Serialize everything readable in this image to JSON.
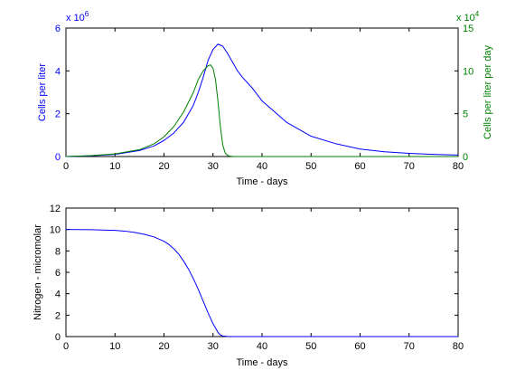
{
  "chart_data": [
    {
      "type": "line",
      "xlabel": "Time - days",
      "ylabel": "Cells per liter",
      "ylabel_right": "Cells per liter per day",
      "xlim": [
        0,
        80
      ],
      "ylim": [
        0,
        6
      ],
      "ylim_right": [
        0,
        15
      ],
      "x_ticks": [
        "0",
        "10",
        "20",
        "30",
        "40",
        "50",
        "60",
        "70",
        "80"
      ],
      "y_ticks": [
        "0",
        "2",
        "4",
        "6"
      ],
      "y_ticks_right": [
        "0",
        "5",
        "10",
        "15"
      ],
      "y_exponent": "x 10",
      "y_exponent_power": "6",
      "y_exponent_right": "x 10",
      "y_exponent_right_power": "4",
      "colors": {
        "left": "#0000ff",
        "right": "#008000"
      },
      "series": [
        {
          "axis": "left",
          "color": "#0000ff",
          "x": [
            0,
            5,
            10,
            15,
            18,
            20,
            22,
            24,
            26,
            27,
            28,
            29,
            30,
            31,
            32,
            33,
            34,
            35,
            36,
            38,
            40,
            45,
            50,
            55,
            60,
            65,
            70,
            75,
            80
          ],
          "y": [
            0,
            0.03,
            0.1,
            0.28,
            0.5,
            0.75,
            1.1,
            1.6,
            2.4,
            3.0,
            3.7,
            4.5,
            5.0,
            5.25,
            5.15,
            4.8,
            4.4,
            4.0,
            3.7,
            3.2,
            2.6,
            1.6,
            0.95,
            0.6,
            0.35,
            0.22,
            0.15,
            0.1,
            0.07
          ]
        },
        {
          "axis": "right",
          "color": "#008000",
          "x": [
            0,
            5,
            10,
            15,
            18,
            20,
            22,
            24,
            26,
            27,
            28,
            29,
            29.5,
            30,
            30.5,
            31,
            31.5,
            32,
            32.5,
            33,
            33.5,
            34,
            35,
            40,
            50,
            60,
            70,
            80
          ],
          "y": [
            0,
            0.1,
            0.3,
            0.8,
            1.5,
            2.3,
            3.5,
            5.2,
            7.5,
            9.0,
            10.0,
            10.6,
            10.7,
            10.3,
            9.0,
            6.5,
            3.5,
            1.3,
            0.4,
            0.12,
            0.04,
            0.01,
            0,
            0,
            0,
            0,
            0,
            0
          ]
        }
      ]
    },
    {
      "type": "line",
      "xlabel": "Time - days",
      "ylabel": "Nitrogen - micromolar",
      "xlim": [
        0,
        80
      ],
      "ylim": [
        0,
        12
      ],
      "x_ticks": [
        "0",
        "10",
        "20",
        "30",
        "40",
        "50",
        "60",
        "70",
        "80"
      ],
      "y_ticks": [
        "0",
        "2",
        "4",
        "6",
        "8",
        "10",
        "12"
      ],
      "colors": {
        "line": "#0000ff"
      },
      "series": [
        {
          "color": "#0000ff",
          "x": [
            0,
            5,
            10,
            12,
            14,
            16,
            18,
            20,
            21,
            22,
            23,
            24,
            25,
            26,
            27,
            28,
            29,
            30,
            31,
            31.5,
            32,
            33,
            34,
            40,
            50,
            60,
            70,
            80
          ],
          "y": [
            10,
            9.98,
            9.92,
            9.85,
            9.73,
            9.55,
            9.3,
            8.9,
            8.6,
            8.2,
            7.7,
            7.05,
            6.3,
            5.4,
            4.4,
            3.3,
            2.2,
            1.2,
            0.4,
            0.15,
            0.05,
            0.01,
            0,
            0,
            0,
            0,
            0,
            0
          ]
        }
      ]
    }
  ]
}
